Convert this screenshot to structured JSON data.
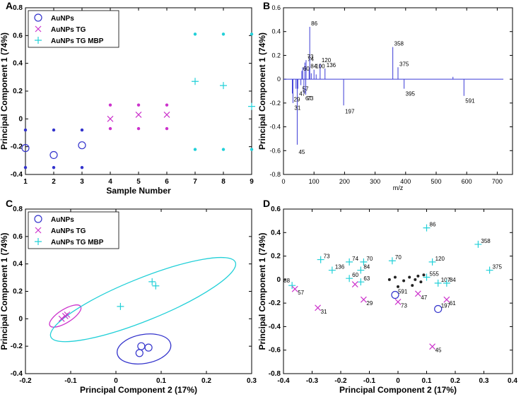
{
  "colors": {
    "au": "#3333cc",
    "tg": "#cc33cc",
    "mbp": "#22d0d8",
    "spectrum": "#3b3bd6"
  },
  "chart_data": [
    {
      "id": "A",
      "type": "scatter",
      "panel_label": "A",
      "xlabel": "Sample Number",
      "ylabel": "Principal Component  1 (74%)",
      "xlim": [
        1,
        9
      ],
      "ylim": [
        -0.4,
        0.8
      ],
      "xticks": [
        1,
        2,
        3,
        4,
        5,
        6,
        7,
        8,
        9
      ],
      "yticks": [
        -0.4,
        -0.2,
        0,
        0.2,
        0.4,
        0.6,
        0.8
      ],
      "ytick_labels": [
        "-0.4",
        "-0.2",
        "0",
        "0.2",
        "0.4",
        "0.6",
        "0.8"
      ],
      "legend": [
        "AuNPs",
        "AuNPs TG",
        "AuNPs TG MBP"
      ],
      "series": [
        {
          "name": "AuNPs",
          "marker": "circle",
          "color_key": "au",
          "x": [
            1,
            2,
            3
          ],
          "y": [
            -0.21,
            -0.26,
            -0.19
          ]
        },
        {
          "name": "AuNPs TG",
          "marker": "x",
          "color_key": "tg",
          "x": [
            4,
            5,
            6
          ],
          "y": [
            0.0,
            0.03,
            0.03
          ]
        },
        {
          "name": "AuNPs TG MBP",
          "marker": "plus",
          "color_key": "mbp",
          "x": [
            7,
            8,
            9
          ],
          "y": [
            0.27,
            0.24,
            0.09
          ]
        }
      ],
      "error_dots": [
        {
          "color_key": "au",
          "x": [
            1,
            2,
            3,
            1,
            2,
            3
          ],
          "y": [
            -0.08,
            -0.08,
            -0.08,
            -0.35,
            -0.35,
            -0.35
          ]
        },
        {
          "color_key": "tg",
          "x": [
            4,
            5,
            6,
            4,
            5,
            6
          ],
          "y": [
            0.1,
            0.1,
            0.1,
            -0.07,
            -0.07,
            -0.07
          ]
        },
        {
          "color_key": "mbp",
          "x": [
            7,
            8,
            9,
            7,
            8,
            9
          ],
          "y": [
            0.61,
            0.61,
            0.61,
            -0.22,
            -0.22,
            -0.22
          ]
        }
      ]
    },
    {
      "id": "B",
      "type": "bar",
      "panel_label": "B",
      "xlabel": "m/z",
      "ylabel": "Principal Component  1 (74%)",
      "xlim": [
        0,
        750
      ],
      "ylim": [
        -0.8,
        0.6
      ],
      "xticks": [
        0,
        100,
        200,
        300,
        400,
        500,
        600,
        700
      ],
      "yticks": [
        -0.8,
        -0.6,
        -0.4,
        -0.2,
        0,
        0.2,
        0.4,
        0.6
      ],
      "ytick_labels": [
        "-0.8",
        "-0.6",
        "-0.4",
        "-0.2",
        "0",
        "0.2",
        "0.4",
        "0.6"
      ],
      "peaks": [
        {
          "x": 29,
          "y": -0.12
        },
        {
          "x": 31,
          "y": -0.2
        },
        {
          "x": 41,
          "y": -0.08
        },
        {
          "x": 45,
          "y": -0.55
        },
        {
          "x": 47,
          "y": -0.08
        },
        {
          "x": 57,
          "y": -0.05
        },
        {
          "x": 60,
          "y": 0.07
        },
        {
          "x": 63,
          "y": 0.1
        },
        {
          "x": 67,
          "y": -0.12
        },
        {
          "x": 70,
          "y": 0.14
        },
        {
          "x": 73,
          "y": -0.13
        },
        {
          "x": 74,
          "y": 0.16
        },
        {
          "x": 84,
          "y": 0.08
        },
        {
          "x": 86,
          "y": 0.44
        },
        {
          "x": 91,
          "y": 0.05
        },
        {
          "x": 100,
          "y": 0.08
        },
        {
          "x": 107,
          "y": 0.04
        },
        {
          "x": 120,
          "y": 0.13
        },
        {
          "x": 136,
          "y": 0.09
        },
        {
          "x": 197,
          "y": -0.22
        },
        {
          "x": 358,
          "y": 0.27
        },
        {
          "x": 375,
          "y": 0.1
        },
        {
          "x": 395,
          "y": -0.08
        },
        {
          "x": 555,
          "y": 0.02
        },
        {
          "x": 591,
          "y": -0.14
        }
      ],
      "annotations": [
        {
          "text": "86",
          "x": 86,
          "y": 0.44
        },
        {
          "text": "358",
          "x": 358,
          "y": 0.27
        },
        {
          "text": "120",
          "x": 120,
          "y": 0.13
        },
        {
          "text": "73",
          "x": 73,
          "y": 0.16
        },
        {
          "text": "74",
          "x": 74,
          "y": 0.14
        },
        {
          "text": "136",
          "x": 136,
          "y": 0.09
        },
        {
          "text": "100",
          "x": 100,
          "y": 0.08
        },
        {
          "text": "84",
          "x": 84,
          "y": 0.08
        },
        {
          "text": "60",
          "x": 60,
          "y": 0.06
        },
        {
          "text": "375",
          "x": 375,
          "y": 0.1
        },
        {
          "text": "57",
          "x": 57,
          "y": -0.05
        },
        {
          "text": "47",
          "x": 47,
          "y": -0.09
        },
        {
          "text": "29",
          "x": 29,
          "y": -0.14
        },
        {
          "text": "67",
          "x": 67,
          "y": -0.13
        },
        {
          "text": "73",
          "x": 73,
          "y": -0.13
        },
        {
          "text": "31",
          "x": 31,
          "y": -0.21
        },
        {
          "text": "197",
          "x": 197,
          "y": -0.24
        },
        {
          "text": "395",
          "x": 395,
          "y": -0.09
        },
        {
          "text": "591",
          "x": 591,
          "y": -0.15
        },
        {
          "text": "45",
          "x": 45,
          "y": -0.58
        }
      ]
    },
    {
      "id": "C",
      "type": "scatter",
      "panel_label": "C",
      "xlabel": "Principal Component  2 (17%)",
      "ylabel": "Principal Component  1 (74%)",
      "xlim": [
        -0.2,
        0.3
      ],
      "ylim": [
        -0.4,
        0.8
      ],
      "xticks": [
        -0.2,
        -0.1,
        0,
        0.1,
        0.2,
        0.3
      ],
      "xtick_labels": [
        "-0.2",
        "-0.1",
        "0",
        "0.1",
        "0.2",
        "0.3"
      ],
      "yticks": [
        -0.4,
        -0.2,
        0,
        0.2,
        0.4,
        0.6,
        0.8
      ],
      "ytick_labels": [
        "-0.4",
        "-0.2",
        "0",
        "0.2",
        "0.4",
        "0.6",
        "0.8"
      ],
      "legend": [
        "AuNPs",
        "AuNPs TG",
        "AuNPs TG MBP"
      ],
      "series": [
        {
          "name": "AuNPs",
          "marker": "circle",
          "color_key": "au",
          "x": [
            0.052,
            0.056,
            0.072
          ],
          "y": [
            -0.25,
            -0.2,
            -0.21
          ]
        },
        {
          "name": "AuNPs TG",
          "marker": "x",
          "color_key": "tg",
          "x": [
            -0.12,
            -0.112,
            -0.108
          ],
          "y": [
            0.0,
            0.02,
            0.03
          ]
        },
        {
          "name": "AuNPs TG MBP",
          "marker": "plus",
          "color_key": "mbp",
          "x": [
            0.01,
            0.08,
            0.088
          ],
          "y": [
            0.09,
            0.27,
            0.24
          ]
        }
      ],
      "ellipses": [
        {
          "color_key": "tg",
          "cx": -0.112,
          "cy": 0.02,
          "a": 0.04,
          "b": 0.022,
          "angle": 32
        },
        {
          "color_key": "mbp",
          "cx": 0.06,
          "cy": 0.14,
          "a": 0.22,
          "b": 0.07,
          "angle": 22
        },
        {
          "color_key": "au",
          "cx": 0.062,
          "cy": -0.22,
          "a": 0.06,
          "b": 0.048,
          "angle": 10
        }
      ]
    },
    {
      "id": "D",
      "type": "scatter",
      "panel_label": "D",
      "xlabel": "Principal Component  2 (17%)",
      "ylabel": "Principal Component  1 (74%)",
      "xlim": [
        -0.4,
        0.4
      ],
      "ylim": [
        -0.8,
        0.6
      ],
      "xticks": [
        -0.4,
        -0.3,
        -0.2,
        -0.1,
        0,
        0.1,
        0.2,
        0.3,
        0.4
      ],
      "xtick_labels": [
        "-0.4",
        "-0.3",
        "-0.2",
        "-0.1",
        "0",
        "0.1",
        "0.2",
        "0.3",
        "0.4"
      ],
      "yticks": [
        -0.8,
        -0.6,
        -0.4,
        -0.2,
        0,
        0.2,
        0.4,
        0.6
      ],
      "ytick_labels": [
        "-0.8",
        "-0.6",
        "-0.4",
        "-0.2",
        "0",
        "0.2",
        "0.4",
        "0.6"
      ],
      "points": [
        {
          "m": "plus",
          "c": "mbp",
          "x": 0.1,
          "y": 0.44,
          "t": "86"
        },
        {
          "m": "plus",
          "c": "mbp",
          "x": 0.28,
          "y": 0.3,
          "t": "358"
        },
        {
          "m": "plus",
          "c": "mbp",
          "x": 0.32,
          "y": 0.08,
          "t": "375"
        },
        {
          "m": "plus",
          "c": "mbp",
          "x": -0.27,
          "y": 0.17,
          "t": "73"
        },
        {
          "m": "plus",
          "c": "mbp",
          "x": -0.17,
          "y": 0.15,
          "t": "74"
        },
        {
          "m": "plus",
          "c": "mbp",
          "x": -0.12,
          "y": 0.15,
          "t": "70"
        },
        {
          "m": "plus",
          "c": "mbp",
          "x": -0.02,
          "y": 0.16,
          "t": "70"
        },
        {
          "m": "plus",
          "c": "mbp",
          "x": 0.12,
          "y": 0.15,
          "t": "120"
        },
        {
          "m": "plus",
          "c": "mbp",
          "x": -0.23,
          "y": 0.08,
          "t": "136"
        },
        {
          "m": "plus",
          "c": "mbp",
          "x": -0.13,
          "y": 0.08,
          "t": "84"
        },
        {
          "m": "plus",
          "c": "mbp",
          "x": -0.17,
          "y": 0.01,
          "t": "60"
        },
        {
          "m": "plus",
          "c": "mbp",
          "x": -0.13,
          "y": -0.02,
          "t": "63"
        },
        {
          "m": "plus",
          "c": "mbp",
          "x": 0.1,
          "y": 0.02,
          "t": "555"
        },
        {
          "m": "plus",
          "c": "mbp",
          "x": 0.14,
          "y": -0.03,
          "t": "107"
        },
        {
          "m": "plus",
          "c": "mbp",
          "x": 0.17,
          "y": -0.03,
          "t": "84"
        },
        {
          "m": "plus",
          "c": "mbp",
          "x": -0.37,
          "y": -0.05,
          "t": ""
        },
        {
          "m": "x",
          "c": "tg",
          "x": -0.36,
          "y": -0.08,
          "t": "57"
        },
        {
          "m": "x",
          "c": "tg",
          "x": -0.15,
          "y": -0.04,
          "t": ""
        },
        {
          "m": "x",
          "c": "tg",
          "x": -0.12,
          "y": -0.17,
          "t": "29"
        },
        {
          "m": "x",
          "c": "tg",
          "x": -0.28,
          "y": -0.24,
          "t": "31"
        },
        {
          "m": "x",
          "c": "tg",
          "x": 0.0,
          "y": -0.19,
          "t": "73"
        },
        {
          "m": "x",
          "c": "tg",
          "x": 0.07,
          "y": -0.12,
          "t": "47"
        },
        {
          "m": "x",
          "c": "tg",
          "x": 0.17,
          "y": -0.17,
          "t": "61"
        },
        {
          "m": "x",
          "c": "tg",
          "x": 0.12,
          "y": -0.57,
          "t": "45"
        },
        {
          "m": "circle",
          "c": "au",
          "x": -0.01,
          "y": -0.13,
          "t": "591"
        },
        {
          "m": "circle",
          "c": "au",
          "x": 0.14,
          "y": -0.25,
          "t": "197"
        },
        {
          "m": "dot",
          "c": "black",
          "x": -0.03,
          "y": 0.0,
          "t": ""
        },
        {
          "m": "dot",
          "c": "black",
          "x": -0.01,
          "y": 0.02,
          "t": ""
        },
        {
          "m": "dot",
          "c": "black",
          "x": 0.02,
          "y": -0.01,
          "t": ""
        },
        {
          "m": "dot",
          "c": "black",
          "x": 0.04,
          "y": 0.02,
          "t": ""
        },
        {
          "m": "dot",
          "c": "black",
          "x": 0.06,
          "y": 0.0,
          "t": ""
        },
        {
          "m": "dot",
          "c": "black",
          "x": 0.07,
          "y": 0.03,
          "t": ""
        },
        {
          "m": "dot",
          "c": "black",
          "x": 0.08,
          "y": -0.02,
          "t": ""
        },
        {
          "m": "dot",
          "c": "black",
          "x": 0.05,
          "y": -0.05,
          "t": ""
        },
        {
          "m": "dot",
          "c": "black",
          "x": 0.0,
          "y": -0.06,
          "t": ""
        },
        {
          "m": "dot",
          "c": "black",
          "x": 0.09,
          "y": 0.04,
          "t": ""
        }
      ],
      "extra_labels": [
        {
          "text": "88",
          "x": -0.37,
          "y": -0.05
        }
      ]
    }
  ]
}
